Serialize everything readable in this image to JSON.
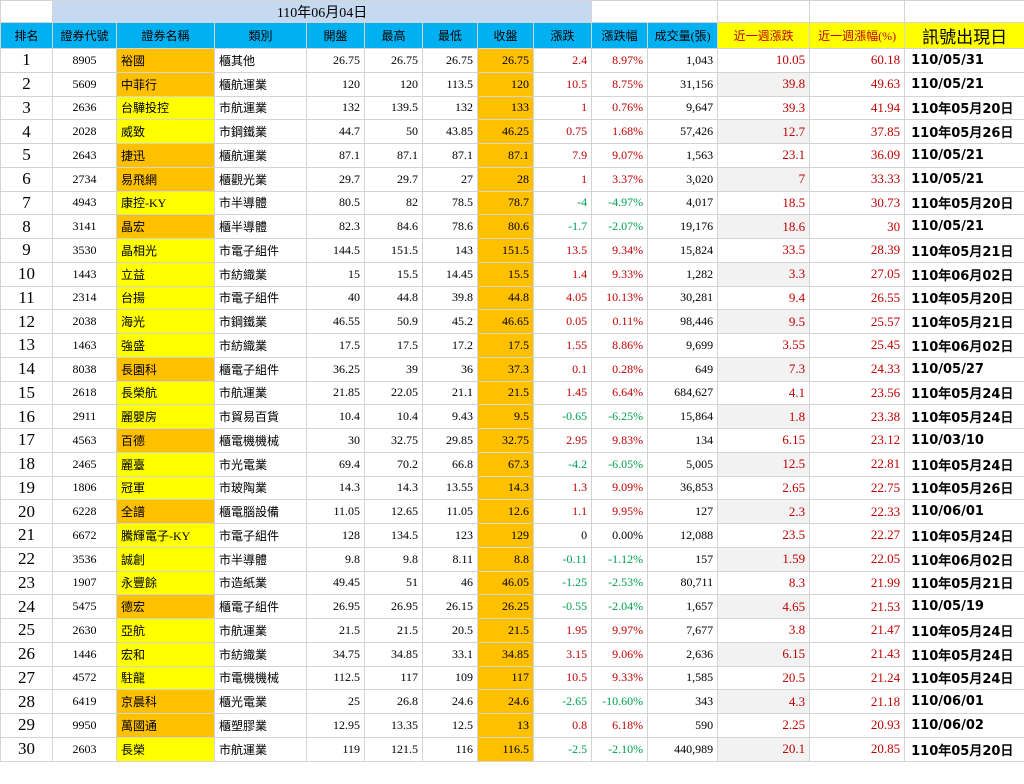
{
  "title": "110年06月04日",
  "headers": [
    "排名",
    "證券代號",
    "證券名稱",
    "類別",
    "開盤",
    "最高",
    "最低",
    "收盤",
    "漲跌",
    "漲跌幅",
    "成交量(張)",
    "近一週漲跌",
    "近一週漲幅(%)",
    "訊號出現日"
  ],
  "colors": {
    "header_bg": "#00b0f0",
    "name_yellow": "#ffff00",
    "name_orange": "#ffc000",
    "close_bg": "#ffc000",
    "up_red": "#c00000",
    "down_green": "#00a050",
    "title_bg": "#c5d9f1"
  },
  "rows": [
    {
      "rank": "1",
      "code": "8905",
      "name": "裕國",
      "cat": "櫃其他",
      "open": "26.75",
      "high": "26.75",
      "low": "26.75",
      "close": "26.75",
      "chg": "2.4",
      "pct": "8.97%",
      "vol": "1,043",
      "wchg": "10.05",
      "wpct": "60.18",
      "sig": "110/05/31",
      "hl": "o"
    },
    {
      "rank": "2",
      "code": "5609",
      "name": "中菲行",
      "cat": "櫃航運業",
      "open": "120",
      "high": "120",
      "low": "113.5",
      "close": "120",
      "chg": "10.5",
      "pct": "8.75%",
      "vol": "31,156",
      "wchg": "39.8",
      "wpct": "49.63",
      "sig": "110/05/21",
      "hl": "o"
    },
    {
      "rank": "3",
      "code": "2636",
      "name": "台驊投控",
      "cat": "市航運業",
      "open": "132",
      "high": "139.5",
      "low": "132",
      "close": "133",
      "chg": "1",
      "pct": "0.76%",
      "vol": "9,647",
      "wchg": "39.3",
      "wpct": "41.94",
      "sig": "110年05月20日",
      "hl": "y"
    },
    {
      "rank": "4",
      "code": "2028",
      "name": "威致",
      "cat": "市鋼鐵業",
      "open": "44.7",
      "high": "50",
      "low": "43.85",
      "close": "46.25",
      "chg": "0.75",
      "pct": "1.68%",
      "vol": "57,426",
      "wchg": "12.7",
      "wpct": "37.85",
      "sig": "110年05月26日",
      "hl": "y"
    },
    {
      "rank": "5",
      "code": "2643",
      "name": "捷迅",
      "cat": "櫃航運業",
      "open": "87.1",
      "high": "87.1",
      "low": "87.1",
      "close": "87.1",
      "chg": "7.9",
      "pct": "9.07%",
      "vol": "1,563",
      "wchg": "23.1",
      "wpct": "36.09",
      "sig": "110/05/21",
      "hl": "o"
    },
    {
      "rank": "6",
      "code": "2734",
      "name": "易飛網",
      "cat": "櫃觀光業",
      "open": "29.7",
      "high": "29.7",
      "low": "27",
      "close": "28",
      "chg": "1",
      "pct": "3.37%",
      "vol": "3,020",
      "wchg": "7",
      "wpct": "33.33",
      "sig": "110/05/21",
      "hl": "o"
    },
    {
      "rank": "7",
      "code": "4943",
      "name": "康控-KY",
      "cat": "市半導體",
      "open": "80.5",
      "high": "82",
      "low": "78.5",
      "close": "78.7",
      "chg": "-4",
      "pct": "-4.97%",
      "vol": "4,017",
      "wchg": "18.5",
      "wpct": "30.73",
      "sig": "110年05月20日",
      "hl": "y"
    },
    {
      "rank": "8",
      "code": "3141",
      "name": "晶宏",
      "cat": "櫃半導體",
      "open": "82.3",
      "high": "84.6",
      "low": "78.6",
      "close": "80.6",
      "chg": "-1.7",
      "pct": "-2.07%",
      "vol": "19,176",
      "wchg": "18.6",
      "wpct": "30",
      "sig": "110/05/21",
      "hl": "o"
    },
    {
      "rank": "9",
      "code": "3530",
      "name": "晶相光",
      "cat": "市電子組件",
      "open": "144.5",
      "high": "151.5",
      "low": "143",
      "close": "151.5",
      "chg": "13.5",
      "pct": "9.34%",
      "vol": "15,824",
      "wchg": "33.5",
      "wpct": "28.39",
      "sig": "110年05月21日",
      "hl": "y"
    },
    {
      "rank": "10",
      "code": "1443",
      "name": "立益",
      "cat": "市紡織業",
      "open": "15",
      "high": "15.5",
      "low": "14.45",
      "close": "15.5",
      "chg": "1.4",
      "pct": "9.33%",
      "vol": "1,282",
      "wchg": "3.3",
      "wpct": "27.05",
      "sig": "110年06月02日",
      "hl": "y"
    },
    {
      "rank": "11",
      "code": "2314",
      "name": "台揚",
      "cat": "市電子組件",
      "open": "40",
      "high": "44.8",
      "low": "39.8",
      "close": "44.8",
      "chg": "4.05",
      "pct": "10.13%",
      "vol": "30,281",
      "wchg": "9.4",
      "wpct": "26.55",
      "sig": "110年05月20日",
      "hl": "y"
    },
    {
      "rank": "12",
      "code": "2038",
      "name": "海光",
      "cat": "市鋼鐵業",
      "open": "46.55",
      "high": "50.9",
      "low": "45.2",
      "close": "46.65",
      "chg": "0.05",
      "pct": "0.11%",
      "vol": "98,446",
      "wchg": "9.5",
      "wpct": "25.57",
      "sig": "110年05月21日",
      "hl": "y"
    },
    {
      "rank": "13",
      "code": "1463",
      "name": "強盛",
      "cat": "市紡織業",
      "open": "17.5",
      "high": "17.5",
      "low": "17.2",
      "close": "17.5",
      "chg": "1.55",
      "pct": "8.86%",
      "vol": "9,699",
      "wchg": "3.55",
      "wpct": "25.45",
      "sig": "110年06月02日",
      "hl": "y"
    },
    {
      "rank": "14",
      "code": "8038",
      "name": "長園科",
      "cat": "櫃電子組件",
      "open": "36.25",
      "high": "39",
      "low": "36",
      "close": "37.3",
      "chg": "0.1",
      "pct": "0.28%",
      "vol": "649",
      "wchg": "7.3",
      "wpct": "24.33",
      "sig": "110/05/27",
      "hl": "o"
    },
    {
      "rank": "15",
      "code": "2618",
      "name": "長榮航",
      "cat": "市航運業",
      "open": "21.85",
      "high": "22.05",
      "low": "21.1",
      "close": "21.5",
      "chg": "1.45",
      "pct": "6.64%",
      "vol": "684,627",
      "wchg": "4.1",
      "wpct": "23.56",
      "sig": "110年05月24日",
      "hl": "y"
    },
    {
      "rank": "16",
      "code": "2911",
      "name": "麗嬰房",
      "cat": "市貿易百貨",
      "open": "10.4",
      "high": "10.4",
      "low": "9.43",
      "close": "9.5",
      "chg": "-0.65",
      "pct": "-6.25%",
      "vol": "15,864",
      "wchg": "1.8",
      "wpct": "23.38",
      "sig": "110年05月24日",
      "hl": "y"
    },
    {
      "rank": "17",
      "code": "4563",
      "name": "百德",
      "cat": "櫃電機機械",
      "open": "30",
      "high": "32.75",
      "low": "29.85",
      "close": "32.75",
      "chg": "2.95",
      "pct": "9.83%",
      "vol": "134",
      "wchg": "6.15",
      "wpct": "23.12",
      "sig": "110/03/10",
      "hl": "o"
    },
    {
      "rank": "18",
      "code": "2465",
      "name": "麗臺",
      "cat": "市光電業",
      "open": "69.4",
      "high": "70.2",
      "low": "66.8",
      "close": "67.3",
      "chg": "-4.2",
      "pct": "-6.05%",
      "vol": "5,005",
      "wchg": "12.5",
      "wpct": "22.81",
      "sig": "110年05月24日",
      "hl": "y"
    },
    {
      "rank": "19",
      "code": "1806",
      "name": "冠軍",
      "cat": "市玻陶業",
      "open": "14.3",
      "high": "14.3",
      "low": "13.55",
      "close": "14.3",
      "chg": "1.3",
      "pct": "9.09%",
      "vol": "36,853",
      "wchg": "2.65",
      "wpct": "22.75",
      "sig": "110年05月26日",
      "hl": "y"
    },
    {
      "rank": "20",
      "code": "6228",
      "name": "全譜",
      "cat": "櫃電腦設備",
      "open": "11.05",
      "high": "12.65",
      "low": "11.05",
      "close": "12.6",
      "chg": "1.1",
      "pct": "9.95%",
      "vol": "127",
      "wchg": "2.3",
      "wpct": "22.33",
      "sig": "110/06/01",
      "hl": "o"
    },
    {
      "rank": "21",
      "code": "6672",
      "name": "騰輝電子-KY",
      "cat": "市電子組件",
      "open": "128",
      "high": "134.5",
      "low": "123",
      "close": "129",
      "chg": "0",
      "pct": "0.00%",
      "vol": "12,088",
      "wchg": "23.5",
      "wpct": "22.27",
      "sig": "110年05月24日",
      "hl": "y"
    },
    {
      "rank": "22",
      "code": "3536",
      "name": "誠創",
      "cat": "市半導體",
      "open": "9.8",
      "high": "9.8",
      "low": "8.11",
      "close": "8.8",
      "chg": "-0.11",
      "pct": "-1.12%",
      "vol": "157",
      "wchg": "1.59",
      "wpct": "22.05",
      "sig": "110年06月02日",
      "hl": "y"
    },
    {
      "rank": "23",
      "code": "1907",
      "name": "永豐餘",
      "cat": "市造紙業",
      "open": "49.45",
      "high": "51",
      "low": "46",
      "close": "46.05",
      "chg": "-1.25",
      "pct": "-2.53%",
      "vol": "80,711",
      "wchg": "8.3",
      "wpct": "21.99",
      "sig": "110年05月21日",
      "hl": "y"
    },
    {
      "rank": "24",
      "code": "5475",
      "name": "德宏",
      "cat": "櫃電子組件",
      "open": "26.95",
      "high": "26.95",
      "low": "26.15",
      "close": "26.25",
      "chg": "-0.55",
      "pct": "-2.04%",
      "vol": "1,657",
      "wchg": "4.65",
      "wpct": "21.53",
      "sig": "110/05/19",
      "hl": "o"
    },
    {
      "rank": "25",
      "code": "2630",
      "name": "亞航",
      "cat": "市航運業",
      "open": "21.5",
      "high": "21.5",
      "low": "20.5",
      "close": "21.5",
      "chg": "1.95",
      "pct": "9.97%",
      "vol": "7,677",
      "wchg": "3.8",
      "wpct": "21.47",
      "sig": "110年05月24日",
      "hl": "y"
    },
    {
      "rank": "26",
      "code": "1446",
      "name": "宏和",
      "cat": "市紡織業",
      "open": "34.75",
      "high": "34.85",
      "low": "33.1",
      "close": "34.85",
      "chg": "3.15",
      "pct": "9.06%",
      "vol": "2,636",
      "wchg": "6.15",
      "wpct": "21.43",
      "sig": "110年05月24日",
      "hl": "y"
    },
    {
      "rank": "27",
      "code": "4572",
      "name": "駐龍",
      "cat": "市電機機械",
      "open": "112.5",
      "high": "117",
      "low": "109",
      "close": "117",
      "chg": "10.5",
      "pct": "9.33%",
      "vol": "1,585",
      "wchg": "20.5",
      "wpct": "21.24",
      "sig": "110年05月24日",
      "hl": "y"
    },
    {
      "rank": "28",
      "code": "6419",
      "name": "京晨科",
      "cat": "櫃光電業",
      "open": "25",
      "high": "26.8",
      "low": "24.6",
      "close": "24.6",
      "chg": "-2.65",
      "pct": "-10.60%",
      "vol": "343",
      "wchg": "4.3",
      "wpct": "21.18",
      "sig": "110/06/01",
      "hl": "o"
    },
    {
      "rank": "29",
      "code": "9950",
      "name": "萬國通",
      "cat": "櫃塑膠業",
      "open": "12.95",
      "high": "13.35",
      "low": "12.5",
      "close": "13",
      "chg": "0.8",
      "pct": "6.18%",
      "vol": "590",
      "wchg": "2.25",
      "wpct": "20.93",
      "sig": "110/06/02",
      "hl": "o"
    },
    {
      "rank": "30",
      "code": "2603",
      "name": "長榮",
      "cat": "市航運業",
      "open": "119",
      "high": "121.5",
      "low": "116",
      "close": "116.5",
      "chg": "-2.5",
      "pct": "-2.10%",
      "vol": "440,989",
      "wchg": "20.1",
      "wpct": "20.85",
      "sig": "110年05月20日",
      "hl": "y"
    }
  ]
}
